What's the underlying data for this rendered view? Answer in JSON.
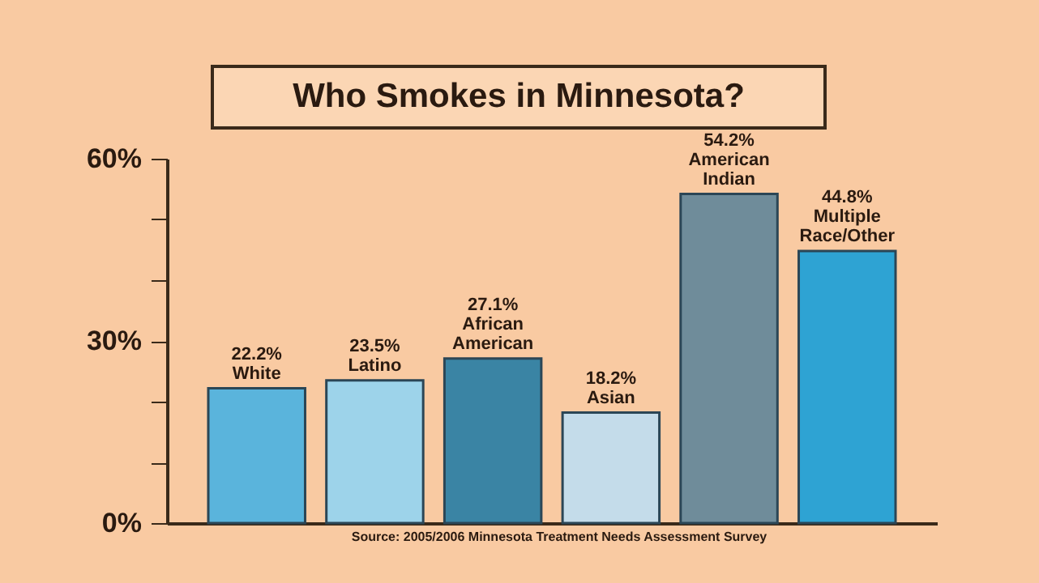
{
  "chart_data": {
    "type": "bar",
    "title": "Who Smokes in Minnesota?",
    "categories": [
      "White",
      "Latino",
      "African American",
      "Asian",
      "American Indian",
      "Multiple Race/Other"
    ],
    "values": [
      22.2,
      23.5,
      27.1,
      18.2,
      54.2,
      44.8
    ],
    "value_labels": [
      "22.2%",
      "23.5%",
      "27.1%",
      "18.2%",
      "54.2%",
      "44.8%"
    ],
    "colors": [
      "#5ab4dc",
      "#9dd3ea",
      "#3a84a4",
      "#c4dcea",
      "#6f8c9a",
      "#2ea3d3"
    ],
    "ylim": [
      0,
      60
    ],
    "yticks": [
      {
        "value": 0,
        "label": "0%"
      },
      {
        "value": 10,
        "label": null
      },
      {
        "value": 20,
        "label": null
      },
      {
        "value": 30,
        "label": "30%"
      },
      {
        "value": 40,
        "label": null
      },
      {
        "value": 50,
        "label": null
      },
      {
        "value": 60,
        "label": "60%"
      }
    ],
    "tick_labels": "y",
    "grid": false,
    "annotations": [
      "Source: 2005/2006 Minnesota Treatment Needs Assessment Survey"
    ]
  }
}
